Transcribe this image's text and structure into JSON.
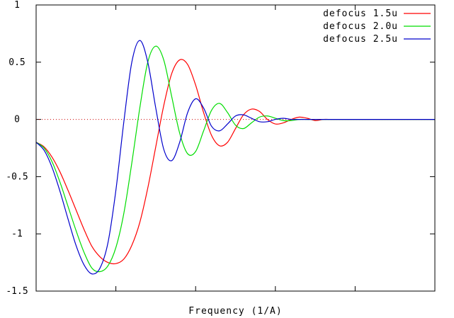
{
  "chart_data": {
    "type": "line",
    "title": "",
    "xlabel": "Frequency (1/A)",
    "ylabel": "",
    "xlim": [
      0,
      1
    ],
    "ylim": [
      -1.5,
      1
    ],
    "y_ticks": [
      {
        "value": 1,
        "label": "1"
      },
      {
        "value": 0.5,
        "label": "0.5"
      },
      {
        "value": 0,
        "label": "0"
      },
      {
        "value": -0.5,
        "label": "-0.5"
      },
      {
        "value": -1,
        "label": "-1"
      },
      {
        "value": -1.5,
        "label": "-1.5"
      }
    ],
    "x_ticks": [
      0,
      0.2,
      0.4,
      0.6,
      0.8,
      1
    ],
    "zero_line": {
      "value": 0,
      "color": "#cc0000",
      "style": "dotted"
    },
    "grid": false,
    "legend_position": "top-right",
    "series": [
      {
        "name": "defocus 1.5u",
        "color": "#ff0000",
        "x": [
          0,
          0.02,
          0.04,
          0.06,
          0.08,
          0.1,
          0.12,
          0.14,
          0.16,
          0.18,
          0.2,
          0.22,
          0.24,
          0.26,
          0.28,
          0.3,
          0.32,
          0.34,
          0.36,
          0.38,
          0.4,
          0.42,
          0.44,
          0.46,
          0.48,
          0.5,
          0.52,
          0.54,
          0.56,
          0.58,
          0.6,
          0.62,
          0.64,
          0.66,
          0.68,
          0.7,
          0.72,
          0.74,
          0.76,
          0.78,
          0.8,
          0.82,
          0.84,
          0.86,
          0.88,
          0.9,
          0.92,
          0.94,
          0.96,
          0.98,
          1
        ],
        "y": [
          -0.2,
          -0.24,
          -0.33,
          -0.46,
          -0.62,
          -0.79,
          -0.96,
          -1.11,
          -1.2,
          -1.25,
          -1.26,
          -1.22,
          -1.1,
          -0.9,
          -0.6,
          -0.24,
          0.12,
          0.4,
          0.52,
          0.48,
          0.3,
          0.06,
          -0.14,
          -0.23,
          -0.2,
          -0.08,
          0.04,
          0.09,
          0.07,
          0.0,
          -0.04,
          -0.03,
          0.0,
          0.02,
          0.01,
          -0.01,
          0.0,
          0.0,
          0.0,
          0.0,
          0.0,
          0.0,
          0.0,
          0.0,
          0.0,
          0.0,
          0.0,
          0.0,
          0.0,
          0.0,
          0.0
        ]
      },
      {
        "name": "defocus 2.0u",
        "color": "#00dd00",
        "x": [
          0,
          0.02,
          0.04,
          0.06,
          0.08,
          0.1,
          0.12,
          0.14,
          0.16,
          0.18,
          0.2,
          0.22,
          0.24,
          0.26,
          0.28,
          0.3,
          0.32,
          0.34,
          0.36,
          0.38,
          0.4,
          0.42,
          0.44,
          0.46,
          0.48,
          0.5,
          0.52,
          0.54,
          0.56,
          0.58,
          0.6,
          0.62,
          0.64,
          0.66,
          0.68,
          0.7,
          0.72,
          0.74,
          0.76,
          0.78,
          0.8,
          0.82,
          0.84,
          0.86,
          0.88,
          0.9,
          0.92,
          0.94,
          0.96,
          0.98,
          1
        ],
        "y": [
          -0.2,
          -0.25,
          -0.37,
          -0.55,
          -0.76,
          -0.97,
          -1.16,
          -1.3,
          -1.33,
          -1.28,
          -1.12,
          -0.82,
          -0.38,
          0.1,
          0.5,
          0.64,
          0.52,
          0.2,
          -0.12,
          -0.3,
          -0.28,
          -0.1,
          0.08,
          0.14,
          0.06,
          -0.05,
          -0.08,
          -0.03,
          0.02,
          0.03,
          0.01,
          -0.01,
          -0.01,
          0.0,
          0.0,
          0.0,
          0.0,
          0.0,
          0.0,
          0.0,
          0.0,
          0.0,
          0.0,
          0.0,
          0.0,
          0.0,
          0.0,
          0.0,
          0.0,
          0.0,
          0.0
        ]
      },
      {
        "name": "defocus 2.5u",
        "color": "#0000cc",
        "x": [
          0,
          0.02,
          0.04,
          0.06,
          0.08,
          0.1,
          0.12,
          0.14,
          0.16,
          0.18,
          0.2,
          0.22,
          0.24,
          0.26,
          0.28,
          0.3,
          0.32,
          0.34,
          0.36,
          0.38,
          0.4,
          0.42,
          0.44,
          0.46,
          0.48,
          0.5,
          0.52,
          0.54,
          0.56,
          0.58,
          0.6,
          0.62,
          0.64,
          0.66,
          0.68,
          0.7,
          0.72,
          0.74,
          0.76,
          0.78,
          0.8,
          0.82,
          0.84,
          0.86,
          0.88,
          0.9,
          0.92,
          0.94,
          0.96,
          0.98,
          1
        ],
        "y": [
          -0.2,
          -0.27,
          -0.42,
          -0.63,
          -0.87,
          -1.1,
          -1.27,
          -1.35,
          -1.3,
          -1.08,
          -0.62,
          -0.02,
          0.5,
          0.69,
          0.5,
          0.1,
          -0.26,
          -0.36,
          -0.2,
          0.06,
          0.18,
          0.1,
          -0.06,
          -0.1,
          -0.04,
          0.03,
          0.04,
          0.01,
          -0.02,
          -0.02,
          0.0,
          0.01,
          0.0,
          0.0,
          0.0,
          0.0,
          0.0,
          0.0,
          0.0,
          0.0,
          0.0,
          0.0,
          0.0,
          0.0,
          0.0,
          0.0,
          0.0,
          0.0,
          0.0,
          0.0,
          0.0
        ]
      }
    ]
  }
}
